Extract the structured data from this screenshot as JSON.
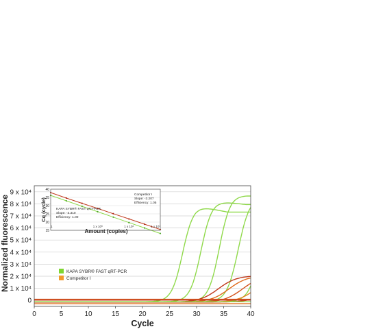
{
  "chart_data": [
    {
      "type": "line",
      "title": "",
      "xlabel": "Cycle",
      "ylabel": "Normalized fluorescence",
      "xlim": [
        0,
        40
      ],
      "ylim": [
        -5000,
        95000
      ],
      "x_ticks": [
        0,
        5,
        10,
        15,
        20,
        25,
        30,
        35,
        40
      ],
      "x_tick_labels": [
        "0",
        "5",
        "10",
        "15",
        "20",
        "25",
        "30",
        "35",
        "40"
      ],
      "y_ticks": [
        0,
        10000,
        20000,
        30000,
        40000,
        50000,
        60000,
        70000,
        80000,
        90000
      ],
      "y_tick_labels": [
        "0",
        "1 x 10⁴",
        "2 x 10⁴",
        "3 x 10⁴",
        "4 x 10⁴",
        "5 x 10⁴",
        "6 x 10⁴",
        "7 x 10⁴",
        "8 x 10⁴",
        "9 x 10⁴"
      ],
      "grid": "horizontal",
      "legend_position": "lower-left",
      "legend": [
        {
          "label": "KAPA SYBR® FAST qRT-PCR",
          "color": "#7ed631"
        },
        {
          "label": "Competitor I",
          "color": "#f29a2e"
        }
      ],
      "series": [
        {
          "color": "#8fd94a",
          "curve": "sigmoid-peak",
          "ct": 25.2,
          "plateau": 80000,
          "peak": 1,
          "end": 0.93
        },
        {
          "color": "#8fd94a",
          "curve": "sigmoid-peak",
          "ct": 28.6,
          "plateau": 84000,
          "peak": 1,
          "end": 0.96
        },
        {
          "color": "#8fd94a",
          "curve": "sigmoid-peak",
          "ct": 32.0,
          "plateau": 89000,
          "peak": 1,
          "end": 0.98
        },
        {
          "color": "#8fd94a",
          "curve": "sigmoid",
          "ct": 35.5,
          "plateau": 87000
        },
        {
          "color": "#8fd94a",
          "curve": "sigmoid",
          "ct": 39.5,
          "plateau": 80000
        },
        {
          "color": "#c0391b",
          "curve": "slow",
          "ct": 30.0,
          "plateau": 22000
        },
        {
          "color": "#e06b1c",
          "curve": "slow",
          "ct": 32.0,
          "plateau": 22000
        },
        {
          "color": "#d3521a",
          "curve": "slow",
          "ct": 34.5,
          "plateau": 22000
        },
        {
          "color": "#e9852a",
          "curve": "slow",
          "ct": 37.0,
          "plateau": 22000
        },
        {
          "color": "#c9461d",
          "curve": "slow",
          "ct": 39.5,
          "plateau": 22000
        },
        {
          "color": "#c0391b",
          "curve": "baseline",
          "value": 200
        },
        {
          "color": "#e06b1c",
          "curve": "baseline",
          "value": -2800
        },
        {
          "color": "#8fd94a",
          "curve": "baseline",
          "value": -1200
        },
        {
          "color": "#d3521a",
          "curve": "baseline",
          "value": 900
        }
      ]
    },
    {
      "type": "scatter",
      "title": "",
      "xlabel": "Amount (copies)",
      "ylabel": "Cq (cycle)",
      "x_scale": "log",
      "xlim": [
        1,
        10000000
      ],
      "ylim": [
        15,
        40
      ],
      "x_tick_labels": [
        "1",
        "1 x 10³",
        "1 x 10⁵",
        "1 x 10⁷"
      ],
      "y_tick_labels": [
        "15",
        "20",
        "25",
        "30",
        "35",
        "40"
      ],
      "series": [
        {
          "name": "Competitor I",
          "color": "#c0391b",
          "slope": -3.207,
          "efficiency": "1.05",
          "x": [
            1,
            10,
            100,
            1000,
            10000,
            100000,
            1000000,
            10000000
          ],
          "y": [
            37.9,
            34.6,
            31.4,
            28.3,
            25.1,
            21.9,
            18.7,
            15.5
          ]
        },
        {
          "name": "KAPA SYBR® FAST qRT-PCR",
          "color": "#8fd94a",
          "slope": -3.31,
          "efficiency": "1.00",
          "x": [
            1,
            10,
            100,
            1000,
            10000,
            100000,
            1000000,
            10000000
          ],
          "y": [
            36.2,
            32.9,
            29.6,
            26.3,
            23.0,
            19.7,
            16.4,
            13.1
          ]
        }
      ],
      "annotations": {
        "competitor": [
          "Competitor I",
          "Slope: -3.207",
          "Efficiency: 1.05"
        ],
        "kapa": [
          "KAPA SYBR® FAST qRT-PCR",
          "Slope: -3.310",
          "Efficiency: 1.00"
        ]
      }
    }
  ]
}
